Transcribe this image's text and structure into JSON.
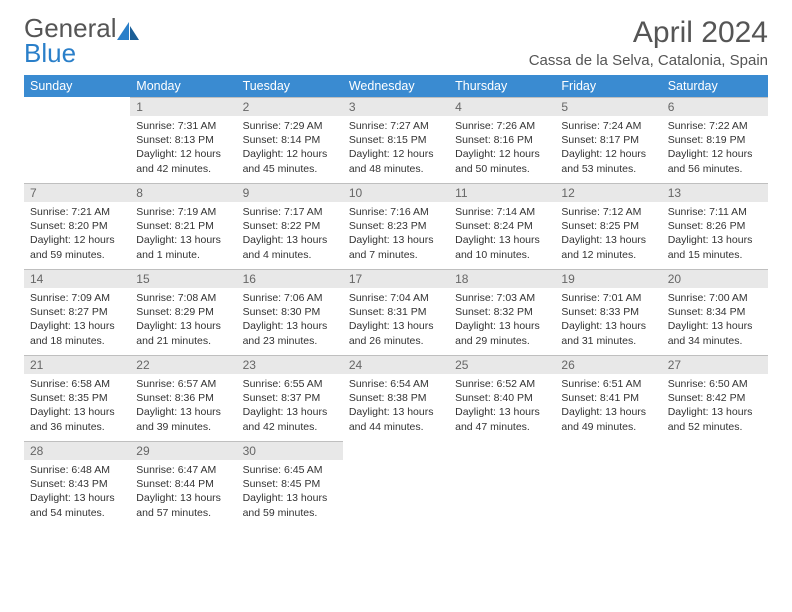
{
  "logo": {
    "word1": "General",
    "word2": "Blue"
  },
  "title": "April 2024",
  "location": "Cassa de la Selva, Catalonia, Spain",
  "colors": {
    "header_bg": "#3a8bd1",
    "header_text": "#ffffff",
    "daynum_bg": "#e8e8e8",
    "daynum_border": "#bfbfbf",
    "body_text": "#333333",
    "logo_blue": "#2a7fc9"
  },
  "weekdays": [
    "Sunday",
    "Monday",
    "Tuesday",
    "Wednesday",
    "Thursday",
    "Friday",
    "Saturday"
  ],
  "weeks": [
    [
      {
        "empty": true
      },
      {
        "n": "1",
        "sr": "Sunrise: 7:31 AM",
        "ss": "Sunset: 8:13 PM",
        "dl": "Daylight: 12 hours and 42 minutes."
      },
      {
        "n": "2",
        "sr": "Sunrise: 7:29 AM",
        "ss": "Sunset: 8:14 PM",
        "dl": "Daylight: 12 hours and 45 minutes."
      },
      {
        "n": "3",
        "sr": "Sunrise: 7:27 AM",
        "ss": "Sunset: 8:15 PM",
        "dl": "Daylight: 12 hours and 48 minutes."
      },
      {
        "n": "4",
        "sr": "Sunrise: 7:26 AM",
        "ss": "Sunset: 8:16 PM",
        "dl": "Daylight: 12 hours and 50 minutes."
      },
      {
        "n": "5",
        "sr": "Sunrise: 7:24 AM",
        "ss": "Sunset: 8:17 PM",
        "dl": "Daylight: 12 hours and 53 minutes."
      },
      {
        "n": "6",
        "sr": "Sunrise: 7:22 AM",
        "ss": "Sunset: 8:19 PM",
        "dl": "Daylight: 12 hours and 56 minutes."
      }
    ],
    [
      {
        "n": "7",
        "sr": "Sunrise: 7:21 AM",
        "ss": "Sunset: 8:20 PM",
        "dl": "Daylight: 12 hours and 59 minutes."
      },
      {
        "n": "8",
        "sr": "Sunrise: 7:19 AM",
        "ss": "Sunset: 8:21 PM",
        "dl": "Daylight: 13 hours and 1 minute."
      },
      {
        "n": "9",
        "sr": "Sunrise: 7:17 AM",
        "ss": "Sunset: 8:22 PM",
        "dl": "Daylight: 13 hours and 4 minutes."
      },
      {
        "n": "10",
        "sr": "Sunrise: 7:16 AM",
        "ss": "Sunset: 8:23 PM",
        "dl": "Daylight: 13 hours and 7 minutes."
      },
      {
        "n": "11",
        "sr": "Sunrise: 7:14 AM",
        "ss": "Sunset: 8:24 PM",
        "dl": "Daylight: 13 hours and 10 minutes."
      },
      {
        "n": "12",
        "sr": "Sunrise: 7:12 AM",
        "ss": "Sunset: 8:25 PM",
        "dl": "Daylight: 13 hours and 12 minutes."
      },
      {
        "n": "13",
        "sr": "Sunrise: 7:11 AM",
        "ss": "Sunset: 8:26 PM",
        "dl": "Daylight: 13 hours and 15 minutes."
      }
    ],
    [
      {
        "n": "14",
        "sr": "Sunrise: 7:09 AM",
        "ss": "Sunset: 8:27 PM",
        "dl": "Daylight: 13 hours and 18 minutes."
      },
      {
        "n": "15",
        "sr": "Sunrise: 7:08 AM",
        "ss": "Sunset: 8:29 PM",
        "dl": "Daylight: 13 hours and 21 minutes."
      },
      {
        "n": "16",
        "sr": "Sunrise: 7:06 AM",
        "ss": "Sunset: 8:30 PM",
        "dl": "Daylight: 13 hours and 23 minutes."
      },
      {
        "n": "17",
        "sr": "Sunrise: 7:04 AM",
        "ss": "Sunset: 8:31 PM",
        "dl": "Daylight: 13 hours and 26 minutes."
      },
      {
        "n": "18",
        "sr": "Sunrise: 7:03 AM",
        "ss": "Sunset: 8:32 PM",
        "dl": "Daylight: 13 hours and 29 minutes."
      },
      {
        "n": "19",
        "sr": "Sunrise: 7:01 AM",
        "ss": "Sunset: 8:33 PM",
        "dl": "Daylight: 13 hours and 31 minutes."
      },
      {
        "n": "20",
        "sr": "Sunrise: 7:00 AM",
        "ss": "Sunset: 8:34 PM",
        "dl": "Daylight: 13 hours and 34 minutes."
      }
    ],
    [
      {
        "n": "21",
        "sr": "Sunrise: 6:58 AM",
        "ss": "Sunset: 8:35 PM",
        "dl": "Daylight: 13 hours and 36 minutes."
      },
      {
        "n": "22",
        "sr": "Sunrise: 6:57 AM",
        "ss": "Sunset: 8:36 PM",
        "dl": "Daylight: 13 hours and 39 minutes."
      },
      {
        "n": "23",
        "sr": "Sunrise: 6:55 AM",
        "ss": "Sunset: 8:37 PM",
        "dl": "Daylight: 13 hours and 42 minutes."
      },
      {
        "n": "24",
        "sr": "Sunrise: 6:54 AM",
        "ss": "Sunset: 8:38 PM",
        "dl": "Daylight: 13 hours and 44 minutes."
      },
      {
        "n": "25",
        "sr": "Sunrise: 6:52 AM",
        "ss": "Sunset: 8:40 PM",
        "dl": "Daylight: 13 hours and 47 minutes."
      },
      {
        "n": "26",
        "sr": "Sunrise: 6:51 AM",
        "ss": "Sunset: 8:41 PM",
        "dl": "Daylight: 13 hours and 49 minutes."
      },
      {
        "n": "27",
        "sr": "Sunrise: 6:50 AM",
        "ss": "Sunset: 8:42 PM",
        "dl": "Daylight: 13 hours and 52 minutes."
      }
    ],
    [
      {
        "n": "28",
        "sr": "Sunrise: 6:48 AM",
        "ss": "Sunset: 8:43 PM",
        "dl": "Daylight: 13 hours and 54 minutes."
      },
      {
        "n": "29",
        "sr": "Sunrise: 6:47 AM",
        "ss": "Sunset: 8:44 PM",
        "dl": "Daylight: 13 hours and 57 minutes."
      },
      {
        "n": "30",
        "sr": "Sunrise: 6:45 AM",
        "ss": "Sunset: 8:45 PM",
        "dl": "Daylight: 13 hours and 59 minutes."
      },
      {
        "empty": true
      },
      {
        "empty": true
      },
      {
        "empty": true
      },
      {
        "empty": true
      }
    ]
  ]
}
